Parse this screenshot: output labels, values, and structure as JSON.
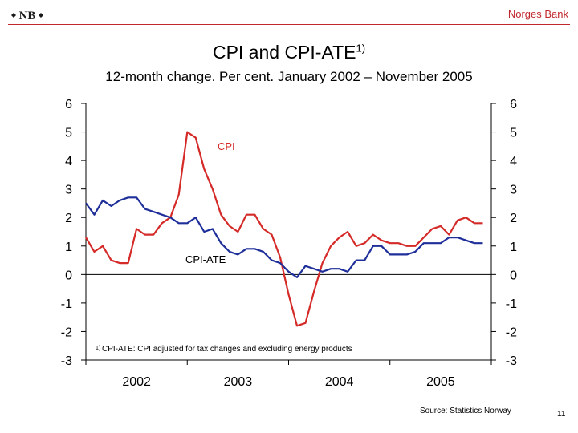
{
  "header": {
    "bank_name": "Norges Bank",
    "logo_text": "NB"
  },
  "title": "CPI and CPI-ATE",
  "title_sup": "1)",
  "subtitle": "12-month change. Per cent. January 2002 – November 2005",
  "footnote_marker": "1)",
  "footnote": "CPI-ATE: CPI adjusted for tax changes and excluding energy products",
  "source": "Source: Statistics Norway",
  "page_number": "11",
  "colors": {
    "cpi": "#d42a28",
    "cpi_ate": "#1f2f9a",
    "brand": "#c0282d"
  },
  "chart_data": {
    "type": "line",
    "title": "CPI and CPI-ATE",
    "subtitle": "12-month change. Per cent. January 2002 – November 2005",
    "xlabel": "",
    "ylabel": "",
    "ylim": [
      -3,
      6
    ],
    "yticks": [
      "-3",
      "-2",
      "-1",
      "0",
      "1",
      "2",
      "3",
      "4",
      "5",
      "6"
    ],
    "yticks_right": [
      "-3",
      "-2",
      "-1",
      "0",
      "1",
      "2",
      "3",
      "4",
      "5",
      "6"
    ],
    "xticks": [
      "2002",
      "2003",
      "2004",
      "2005"
    ],
    "grid": false,
    "x_start": "2002-01",
    "x_end": "2005-11",
    "series": [
      {
        "name": "CPI",
        "color": "#d42a28",
        "values": [
          1.3,
          0.8,
          1.0,
          0.5,
          0.4,
          0.4,
          1.6,
          1.4,
          1.4,
          1.8,
          2.0,
          2.8,
          5.0,
          4.8,
          3.7,
          3.0,
          2.1,
          1.7,
          1.5,
          2.1,
          2.1,
          1.6,
          1.4,
          0.6,
          -0.7,
          -1.8,
          -1.7,
          -0.6,
          0.4,
          1.0,
          1.3,
          1.5,
          1.0,
          1.1,
          1.4,
          1.2,
          1.1,
          1.1,
          1.0,
          1.0,
          1.3,
          1.6,
          1.7,
          1.4,
          1.9,
          2.0,
          1.8,
          1.8
        ]
      },
      {
        "name": "CPI-ATE",
        "color": "#1f2f9a",
        "values": [
          2.5,
          2.1,
          2.6,
          2.4,
          2.6,
          2.7,
          2.7,
          2.3,
          2.2,
          2.1,
          2.0,
          1.8,
          1.8,
          2.0,
          1.5,
          1.6,
          1.1,
          0.8,
          0.7,
          0.9,
          0.9,
          0.8,
          0.5,
          0.4,
          0.1,
          -0.1,
          0.3,
          0.2,
          0.1,
          0.2,
          0.2,
          0.1,
          0.5,
          0.5,
          1.0,
          1.0,
          0.7,
          0.7,
          0.7,
          0.8,
          1.1,
          1.1,
          1.1,
          1.3,
          1.3,
          1.2,
          1.1,
          1.1
        ]
      }
    ],
    "series_labels": [
      {
        "text": "CPI",
        "color": "#d42a28"
      },
      {
        "text": "CPI-ATE",
        "color": "#000000"
      }
    ]
  }
}
